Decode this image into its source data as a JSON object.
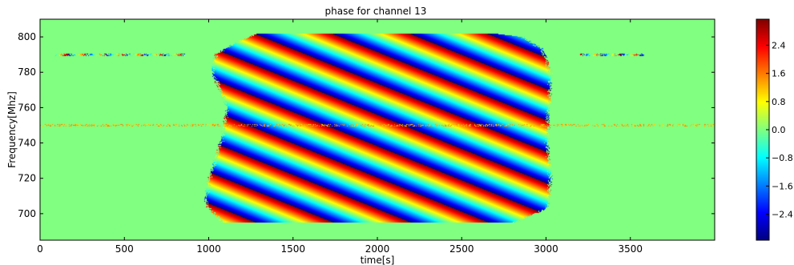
{
  "chart_data": {
    "type": "heatmap",
    "title": "phase for channel 13",
    "xlabel": "time[s]",
    "ylabel": "Frequency[Mhz]",
    "xlim": [
      0,
      4000
    ],
    "ylim": [
      685,
      810
    ],
    "xticks": [
      0,
      500,
      1000,
      1500,
      2000,
      2500,
      3000,
      3500
    ],
    "xtick_labels": [
      "0",
      "500",
      "1000",
      "1500",
      "2000",
      "2500",
      "3000",
      "3500"
    ],
    "yticks": [
      700,
      720,
      740,
      760,
      780,
      800
    ],
    "ytick_labels": [
      "700",
      "720",
      "740",
      "760",
      "780",
      "800"
    ],
    "colormap": "jet",
    "clim": [
      -3.14,
      3.14
    ],
    "colorbar_ticks": [
      2.4,
      1.6,
      0.8,
      0.0,
      -0.8,
      -1.6,
      -2.4
    ],
    "colorbar_tick_labels": [
      "2.4",
      "1.6",
      "0.8",
      "0.0",
      "−0.8",
      "−1.6",
      "−2.4"
    ],
    "background_value": 0.0,
    "signal_region": {
      "time_range": [
        1000,
        3050
      ],
      "freq_range": [
        695,
        802
      ],
      "left_edge_points": [
        [
          695,
          1100
        ],
        [
          705,
          1000
        ],
        [
          720,
          1020
        ],
        [
          740,
          1090
        ],
        [
          760,
          1130
        ],
        [
          780,
          1040
        ],
        [
          790,
          1060
        ],
        [
          797,
          1180
        ],
        [
          802,
          1310
        ]
      ],
      "right_edge_points": [
        [
          695,
          2790
        ],
        [
          703,
          2990
        ],
        [
          720,
          3010
        ],
        [
          740,
          2990
        ],
        [
          760,
          3000
        ],
        [
          780,
          3010
        ],
        [
          793,
          2960
        ],
        [
          800,
          2840
        ],
        [
          802,
          2660
        ]
      ]
    },
    "fringe_pattern": {
      "description_value_phase": "diagonal stripes",
      "time_period_s": 460,
      "freq_slope_mhz_per_s": 0.0386
    },
    "rfi_features": [
      {
        "freq": 790,
        "time_range": [
          90,
          860
        ]
      },
      {
        "freq": 790,
        "time_range": [
          3200,
          3580
        ]
      },
      {
        "freq": 750,
        "time_range": [
          0,
          4000
        ]
      }
    ]
  }
}
